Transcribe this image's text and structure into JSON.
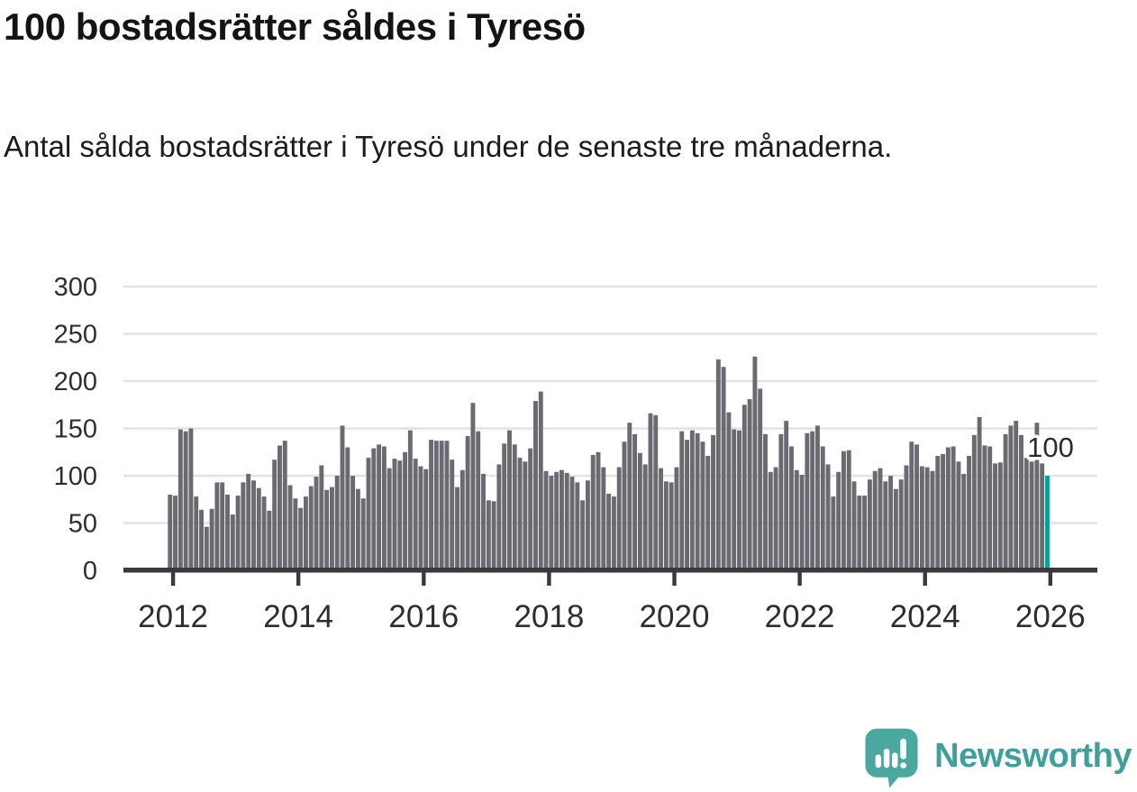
{
  "title": "100 bostadsrätter såldes i Tyresö",
  "subtitle": "Antal sålda bostadsrätter i Tyresö under de senaste tre månaderna.",
  "annotation": {
    "label": "100"
  },
  "logo": {
    "text": "Newsworthy",
    "icon": "newsworthy-speech-bubble-chart-icon"
  },
  "colors": {
    "bar": "#6b6a70",
    "highlight": "#00a29a",
    "axis": "#3a3a3c",
    "grid": "#e3e3e3",
    "tick_text": "#2e2e2e",
    "annotation_text": "#2b2b2b",
    "logo_teal": "#3da09b",
    "logo_icon_teal": "#4aa8a0"
  },
  "chart_data": {
    "type": "bar",
    "title": "100 bostadsrätter såldes i Tyresö",
    "subtitle": "Antal sålda bostadsrätter i Tyresö under de senaste tre månaderna.",
    "unit": "antal sålda bostadsrätter (rullande 3 månader)",
    "x_start_month": "2011-12",
    "x_end_month": "2025-12",
    "xlabel": "",
    "ylabel": "",
    "ylim": [
      0,
      300
    ],
    "yticks": [
      0,
      50,
      100,
      150,
      200,
      250,
      300
    ],
    "xticks": [
      2012,
      2014,
      2016,
      2018,
      2020,
      2022,
      2024,
      2026
    ],
    "grid": true,
    "legend": false,
    "highlight_last": true,
    "last_value_label": "100",
    "values": [
      80,
      79,
      149,
      147,
      150,
      78,
      64,
      46,
      65,
      93,
      93,
      80,
      59,
      79,
      93,
      102,
      95,
      87,
      78,
      63,
      117,
      132,
      137,
      90,
      76,
      66,
      78,
      89,
      99,
      111,
      85,
      88,
      100,
      153,
      130,
      100,
      86,
      76,
      119,
      129,
      133,
      131,
      108,
      118,
      116,
      125,
      148,
      118,
      110,
      107,
      138,
      137,
      137,
      137,
      117,
      88,
      106,
      142,
      177,
      147,
      102,
      74,
      73,
      112,
      134,
      148,
      133,
      119,
      115,
      129,
      179,
      189,
      105,
      100,
      104,
      106,
      103,
      99,
      93,
      74,
      95,
      122,
      125,
      109,
      81,
      78,
      109,
      136,
      156,
      144,
      124,
      112,
      166,
      164,
      108,
      94,
      93,
      109,
      147,
      138,
      148,
      145,
      136,
      121,
      143,
      223,
      215,
      167,
      149,
      148,
      175,
      181,
      226,
      192,
      144,
      104,
      109,
      144,
      158,
      131,
      106,
      101,
      145,
      147,
      153,
      131,
      112,
      78,
      104,
      126,
      127,
      94,
      79,
      79,
      96,
      105,
      108,
      94,
      100,
      86,
      96,
      111,
      136,
      133,
      110,
      109,
      105,
      121,
      123,
      130,
      131,
      115,
      102,
      121,
      143,
      162,
      132,
      131,
      113,
      114,
      144,
      153,
      158,
      143,
      119,
      115,
      156,
      113,
      100
    ]
  }
}
